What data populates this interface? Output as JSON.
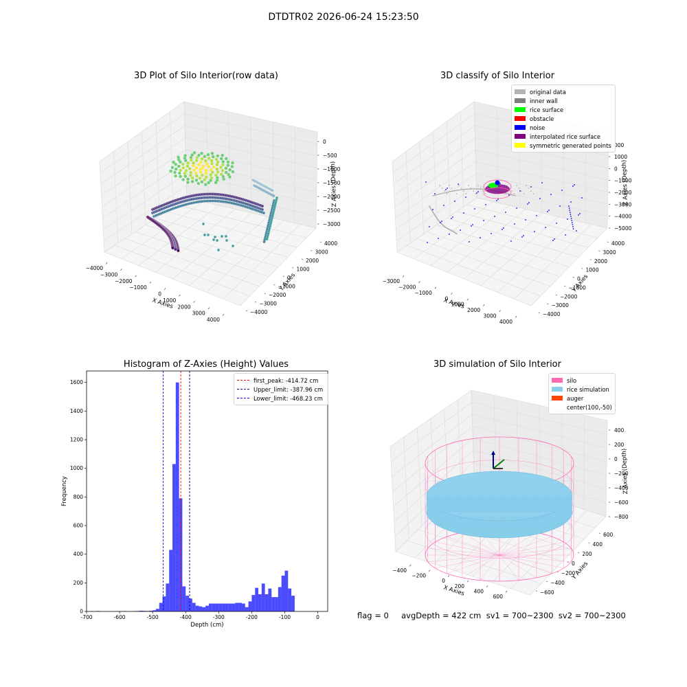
{
  "suptitle": "DTDTR02 2026-06-24 15:23:50",
  "footer": "flag = 0     avgDepth = 422 cm  sv1 = 700~2300  sv2 = 700~2300",
  "chart_data": [
    {
      "type": "scatter",
      "title": "3D Plot of Silo Interior(row data)",
      "projection": "3d",
      "xlabel": "X Axies",
      "ylabel": "Y Axies",
      "zlabel": "Z Axies (Depth)",
      "x_ticks": [
        "−4000",
        "−3000",
        "−2000",
        "−1000",
        "0",
        "1000",
        "2000",
        "3000",
        "4000"
      ],
      "y_ticks": [
        "−4000",
        "−3000",
        "−2000",
        "−1000",
        "0",
        "1000",
        "2000",
        "3000",
        "4000"
      ],
      "z_ticks": [
        "0",
        "−500",
        "−1000",
        "−1500",
        "−2000",
        "−2500",
        "−3000"
      ],
      "colormap": "viridis (by depth)"
    },
    {
      "type": "scatter",
      "title": "3D classify of Silo Interior",
      "projection": "3d",
      "xlabel": "X Axies",
      "ylabel": "Y Axies",
      "zlabel": "Z Axies (Depth)",
      "x_ticks": [
        "−3000",
        "−2000",
        "−1000",
        "0",
        "1000",
        "2000",
        "3000",
        "4000"
      ],
      "y_ticks": [
        "−4000",
        "−3000",
        "−2000",
        "−1000",
        "0",
        "1000",
        "2000",
        "3000",
        "4000"
      ],
      "z_ticks": [
        "1000",
        "0",
        "−1000",
        "−2000",
        "−3000",
        "−4000",
        "−5000"
      ],
      "legend": [
        {
          "label": "original data",
          "color": "#b3b3b3"
        },
        {
          "label": "inner wall",
          "color": "#808080"
        },
        {
          "label": "rice surface",
          "color": "#00ff00"
        },
        {
          "label": "obstacle",
          "color": "#ff0000"
        },
        {
          "label": "noise",
          "color": "#0000ff"
        },
        {
          "label": "interpolated rice surface",
          "color": "#800080"
        },
        {
          "label": "symmetric generated points",
          "color": "#ffff00"
        }
      ],
      "partial_tick": "000"
    },
    {
      "type": "bar",
      "title": "Histogram of Z-Axies (Height) Values",
      "xlabel": "Depth (cm)",
      "ylabel": "Frequency",
      "xlim": [
        -700,
        30
      ],
      "ylim": [
        0,
        1680
      ],
      "x_ticks": [
        -700,
        -600,
        -500,
        -400,
        -300,
        -200,
        -100,
        0
      ],
      "y_ticks": [
        0,
        200,
        400,
        600,
        800,
        1000,
        1200,
        1400,
        1600
      ],
      "bin_width": 10,
      "bins": [
        {
          "x": -670,
          "value": 3
        },
        {
          "x": -610,
          "value": 2
        },
        {
          "x": -600,
          "value": 2
        },
        {
          "x": -590,
          "value": 2
        },
        {
          "x": -560,
          "value": 2
        },
        {
          "x": -550,
          "value": 3
        },
        {
          "x": -540,
          "value": 5
        },
        {
          "x": -530,
          "value": 4
        },
        {
          "x": -520,
          "value": 3
        },
        {
          "x": -510,
          "value": 5
        },
        {
          "x": -500,
          "value": 8
        },
        {
          "x": -490,
          "value": 18
        },
        {
          "x": -480,
          "value": 60
        },
        {
          "x": -470,
          "value": 105
        },
        {
          "x": -460,
          "value": 195
        },
        {
          "x": -450,
          "value": 430
        },
        {
          "x": -440,
          "value": 1030
        },
        {
          "x": -430,
          "value": 1600
        },
        {
          "x": -420,
          "value": 790
        },
        {
          "x": -410,
          "value": 175
        },
        {
          "x": -400,
          "value": 110
        },
        {
          "x": -390,
          "value": 90
        },
        {
          "x": -380,
          "value": 60
        },
        {
          "x": -370,
          "value": 40
        },
        {
          "x": -360,
          "value": 35
        },
        {
          "x": -350,
          "value": 30
        },
        {
          "x": -340,
          "value": 40
        },
        {
          "x": -330,
          "value": 55
        },
        {
          "x": -320,
          "value": 55
        },
        {
          "x": -310,
          "value": 55
        },
        {
          "x": -300,
          "value": 55
        },
        {
          "x": -290,
          "value": 55
        },
        {
          "x": -280,
          "value": 55
        },
        {
          "x": -270,
          "value": 55
        },
        {
          "x": -260,
          "value": 55
        },
        {
          "x": -250,
          "value": 60
        },
        {
          "x": -240,
          "value": 60
        },
        {
          "x": -230,
          "value": 55
        },
        {
          "x": -220,
          "value": 30
        },
        {
          "x": -210,
          "value": 70
        },
        {
          "x": -200,
          "value": 115
        },
        {
          "x": -190,
          "value": 165
        },
        {
          "x": -180,
          "value": 120
        },
        {
          "x": -170,
          "value": 195
        },
        {
          "x": -160,
          "value": 120
        },
        {
          "x": -150,
          "value": 160
        },
        {
          "x": -140,
          "value": 100
        },
        {
          "x": -130,
          "value": 100
        },
        {
          "x": -120,
          "value": 170
        },
        {
          "x": -110,
          "value": 250
        },
        {
          "x": -100,
          "value": 285
        },
        {
          "x": -90,
          "value": 160
        },
        {
          "x": -80,
          "value": 110
        }
      ],
      "bar_color": "#0000ff",
      "vlines": [
        {
          "label": "first_peak: -414.72 cm",
          "x": -414.72,
          "color": "#ff0000"
        },
        {
          "label": "Upper_limit: -387.96 cm",
          "x": -387.96,
          "color": "#00008b"
        },
        {
          "label": "Lower_limit: -468.23 cm",
          "x": -468.23,
          "color": "#0000ff"
        }
      ]
    },
    {
      "type": "surface",
      "title": "3D simulation of Silo Interior",
      "projection": "3d",
      "xlabel": "X Axies",
      "ylabel": "Y Axies",
      "zlabel": "Z Axies (Depth)",
      "x_ticks": [
        "−400",
        "−200",
        "0",
        "200",
        "400",
        "600"
      ],
      "y_ticks": [
        "−600",
        "−400",
        "−200",
        "0",
        "200",
        "400",
        "600"
      ],
      "z_ticks": [
        "400",
        "200",
        "0",
        "−200",
        "−400",
        "−600",
        "−800"
      ],
      "legend": [
        {
          "label": "silo",
          "color": "#ff69b4"
        },
        {
          "label": "rice simulation",
          "color": "#87ceeb"
        },
        {
          "label": "auger",
          "color": "#ff4500"
        },
        {
          "label": "center(100,-50)",
          "color": ""
        }
      ]
    }
  ]
}
